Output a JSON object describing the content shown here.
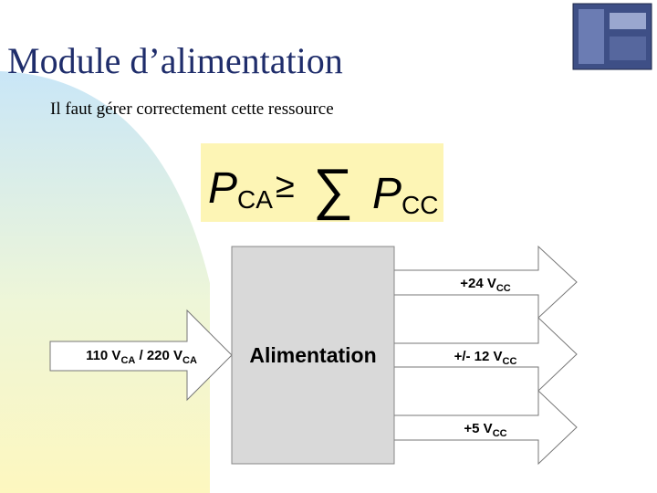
{
  "header": {
    "title": "Module d’alimentation",
    "subtitle": "Il faut gérer correctement cette ressource"
  },
  "formula": {
    "lhs": "P",
    "lhs_sub": "CA",
    "relation": "≥",
    "operator": "∑",
    "rhs": "P",
    "rhs_sub": "CC"
  },
  "diagram": {
    "input": {
      "parts": [
        "110 V",
        "CA",
        " / 220 V",
        "CA"
      ]
    },
    "block": "Alimentation",
    "outputs": [
      {
        "text": "+24 V",
        "sub": "CC"
      },
      {
        "text": "+/- 12 V",
        "sub": "CC"
      },
      {
        "text": "+5 V",
        "sub": "CC"
      }
    ]
  }
}
